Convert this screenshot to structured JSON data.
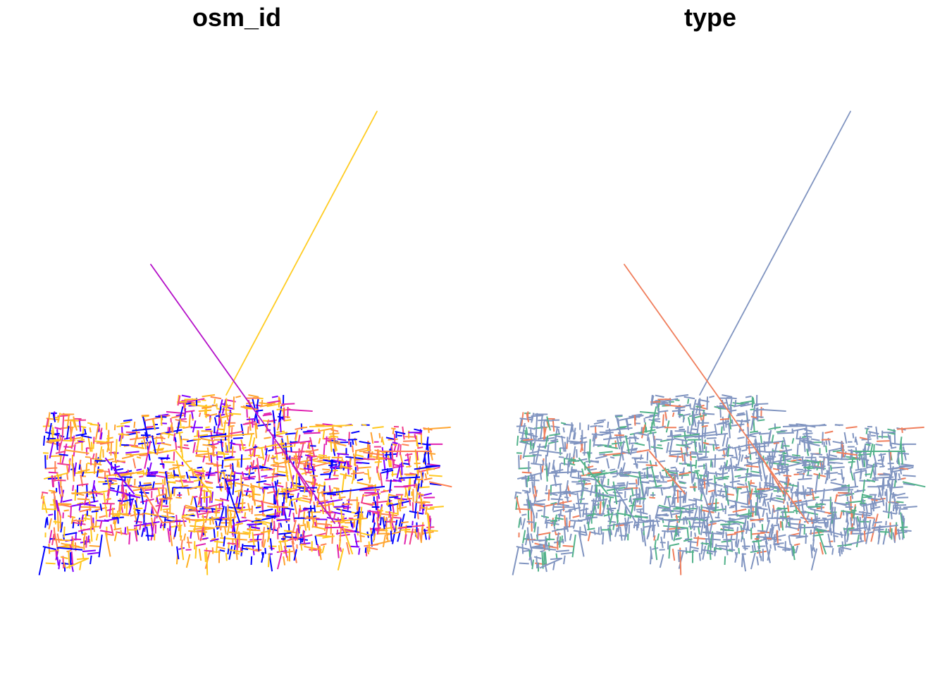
{
  "panels": [
    {
      "title": "osm_id",
      "palette": [
        "#0000ff",
        "#0000ff",
        "#7f00ff",
        "#e020b0",
        "#f03c8c",
        "#ff8050",
        "#ffa030",
        "#ffb020",
        "#ffc81e",
        "#ffc81e",
        "#ffa530"
      ],
      "long_lines": [
        {
          "color": "#ffcc22"
        },
        {
          "color": "#b40fc8"
        }
      ]
    },
    {
      "title": "type",
      "palette": [
        "#8094c0",
        "#8094c0",
        "#8094c0",
        "#8094c0",
        "#8094c0",
        "#8094c0",
        "#8094c0",
        "#52b28a",
        "#52b28a",
        "#f07e5c"
      ],
      "long_lines": [
        {
          "color": "#8094c0"
        },
        {
          "color": "#f07e5c"
        }
      ]
    }
  ]
}
